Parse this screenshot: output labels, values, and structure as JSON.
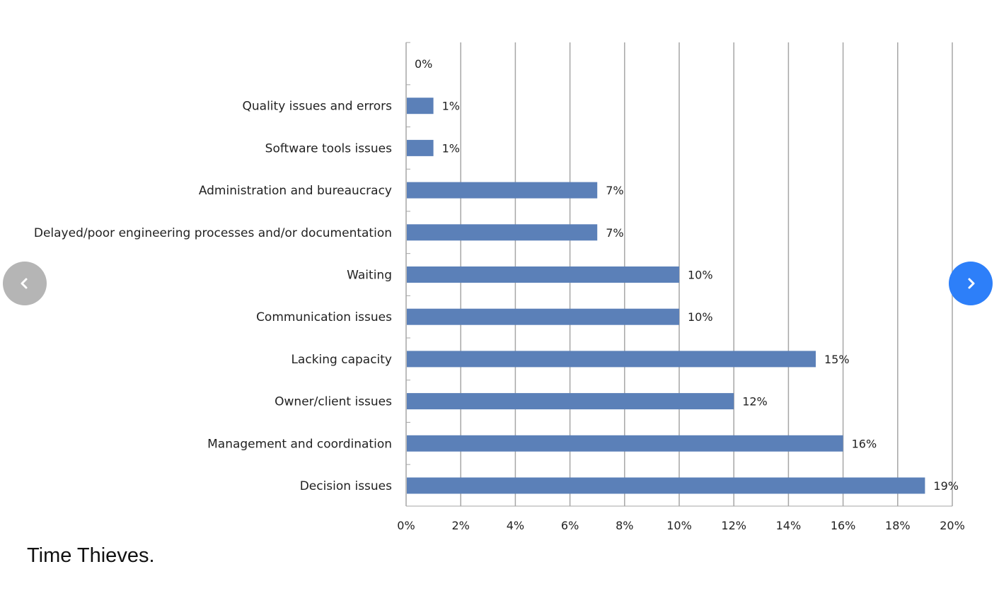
{
  "chart_data": {
    "type": "bar",
    "orientation": "horizontal",
    "categories": [
      "",
      "Quality issues and errors",
      "Software tools issues",
      "Administration and bureaucracy",
      "Delayed/poor engineering processes and/or documentation",
      "Waiting",
      "Communication issues",
      "Lacking capacity",
      "Owner/client issues",
      "Management and coordination",
      "Decision issues"
    ],
    "values": [
      0,
      1,
      1,
      7,
      7,
      10,
      10,
      15,
      12,
      16,
      19
    ],
    "value_labels": [
      "0%",
      "1%",
      "1%",
      "7%",
      "7%",
      "10%",
      "10%",
      "15%",
      "12%",
      "16%",
      "19%"
    ],
    "x_ticks": [
      "0%",
      "2%",
      "4%",
      "6%",
      "8%",
      "10%",
      "12%",
      "14%",
      "16%",
      "18%",
      "20%"
    ],
    "xlim": [
      0,
      20
    ],
    "grid": "vertical",
    "bar_color": "#5b80b8",
    "grid_color": "#a6a6a6"
  },
  "caption": "Time Thieves.",
  "carousel": {
    "prev_icon": "chevron-left-icon",
    "next_icon": "chevron-right-icon",
    "prev_color": "#b5b5b5",
    "next_color": "#2d7ff9"
  }
}
